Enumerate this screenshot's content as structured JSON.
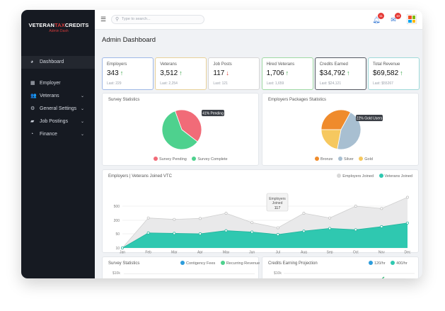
{
  "app": {
    "logo_prefix": "VETERAN",
    "logo_accent": "TAX",
    "logo_suffix": "CREDITS",
    "logo_subtitle": "Admin Dash"
  },
  "sidebar": {
    "items": [
      {
        "label": "Dashboard",
        "icon": "dashboard-icon",
        "active": true
      },
      {
        "label": "Employer",
        "icon": "building-icon"
      },
      {
        "label": "Veterans",
        "icon": "users-icon",
        "expandable": true
      },
      {
        "label": "General Settings",
        "icon": "gears-icon",
        "expandable": true
      },
      {
        "label": "Job Postings",
        "icon": "briefcase-icon",
        "expandable": true
      },
      {
        "label": "Finance",
        "icon": "pie-chart-icon",
        "expandable": true
      }
    ]
  },
  "topbar": {
    "search_placeholder": "Type to search...",
    "notifications_badge": "11",
    "messages_badge": "10"
  },
  "page": {
    "title": "Admin Dashboard"
  },
  "kpis": [
    {
      "label": "Employers",
      "value": "343",
      "trend": "up",
      "last": "Last: 229",
      "border": "#9fb8e6"
    },
    {
      "label": "Veterans",
      "value": "3,512",
      "trend": "up",
      "last": "Last: 2,254",
      "border": "#e8d19a"
    },
    {
      "label": "Job Posts",
      "value": "117",
      "trend": "down",
      "last": "Last: 121",
      "border": "#d6d6d6"
    },
    {
      "label": "Hired Veterans",
      "value": "1,706",
      "trend": "up",
      "last": "Last: 1,659",
      "border": "#9fd9a4"
    },
    {
      "label": "Credits Earned",
      "value": "$34,792",
      "trend": "up",
      "last": "Last: $24,121",
      "border": "#555a63"
    },
    {
      "label": "Total Revenue",
      "value": "$69,582",
      "trend": "up",
      "last": "Last: $55267",
      "border": "#9ed9d9"
    }
  ],
  "colors": {
    "trend_up": "#2e9e3e",
    "trend_down": "#d93025",
    "teal": "#2fc8b0",
    "gray_area": "#e9e9ea"
  },
  "survey_stats": {
    "title": "Survey Statistics",
    "tooltip": "41% Pending",
    "legend": [
      {
        "label": "Survey Pending",
        "color": "#f16b78"
      },
      {
        "label": "Survey Complete",
        "color": "#4ed18e"
      }
    ]
  },
  "packages_stats": {
    "title": "Employers Packages Statistics",
    "tooltip": "22% Gold Users",
    "legend": [
      {
        "label": "Bronze",
        "color": "#ef8b2c"
      },
      {
        "label": "Silver",
        "color": "#a8bfd1"
      },
      {
        "label": "Gold",
        "color": "#f6c85f"
      }
    ]
  },
  "joined_chart": {
    "title": "Employers | Veterans Joined VTC",
    "legend": [
      {
        "label": "Employers Joined",
        "color": "#d9d9d9"
      },
      {
        "label": "Veterans Joined",
        "color": "#2fc8b0"
      }
    ],
    "tooltip_label": "Employers Joined",
    "tooltip_value": "117"
  },
  "bottom_left": {
    "title": "Survey Statistics",
    "axis_label": "$10k",
    "legend": [
      {
        "label": "Contigency Fees",
        "color": "#2d9cdb"
      },
      {
        "label": "Recurring Revenue",
        "color": "#4ed18e"
      }
    ]
  },
  "bottom_right": {
    "title": "Credits Earning Projection",
    "axis_label": "$10k",
    "legend": [
      {
        "label": "120/hr",
        "color": "#2d9cdb"
      },
      {
        "label": "400/hr",
        "color": "#2fc8b0"
      }
    ]
  },
  "chart_data": [
    {
      "type": "pie",
      "title": "Survey Statistics",
      "labels": [
        "Survey Pending",
        "Survey Complete"
      ],
      "values": [
        41,
        59
      ]
    },
    {
      "type": "pie",
      "title": "Employers Packages Statistics",
      "labels": [
        "Bronze",
        "Silver",
        "Gold"
      ],
      "values": [
        33,
        45,
        22
      ]
    },
    {
      "type": "area",
      "title": "Employers | Veterans Joined VTC",
      "categories": [
        "Jan",
        "Feb",
        "Mar",
        "Apr",
        "May",
        "Jun",
        "Jul",
        "Aug",
        "Sep",
        "Oct",
        "Nov",
        "Dec"
      ],
      "y_ticks": [
        "10",
        "50",
        "200",
        "500"
      ],
      "series": [
        {
          "name": "Employers Joined",
          "values": [
            10,
            250,
            220,
            240,
            350,
            175,
            117,
            350,
            250,
            500,
            450,
            750
          ]
        },
        {
          "name": "Veterans Joined",
          "values": [
            10,
            60,
            55,
            50,
            85,
            70,
            48,
            80,
            110,
            95,
            130,
            170
          ]
        }
      ]
    }
  ]
}
